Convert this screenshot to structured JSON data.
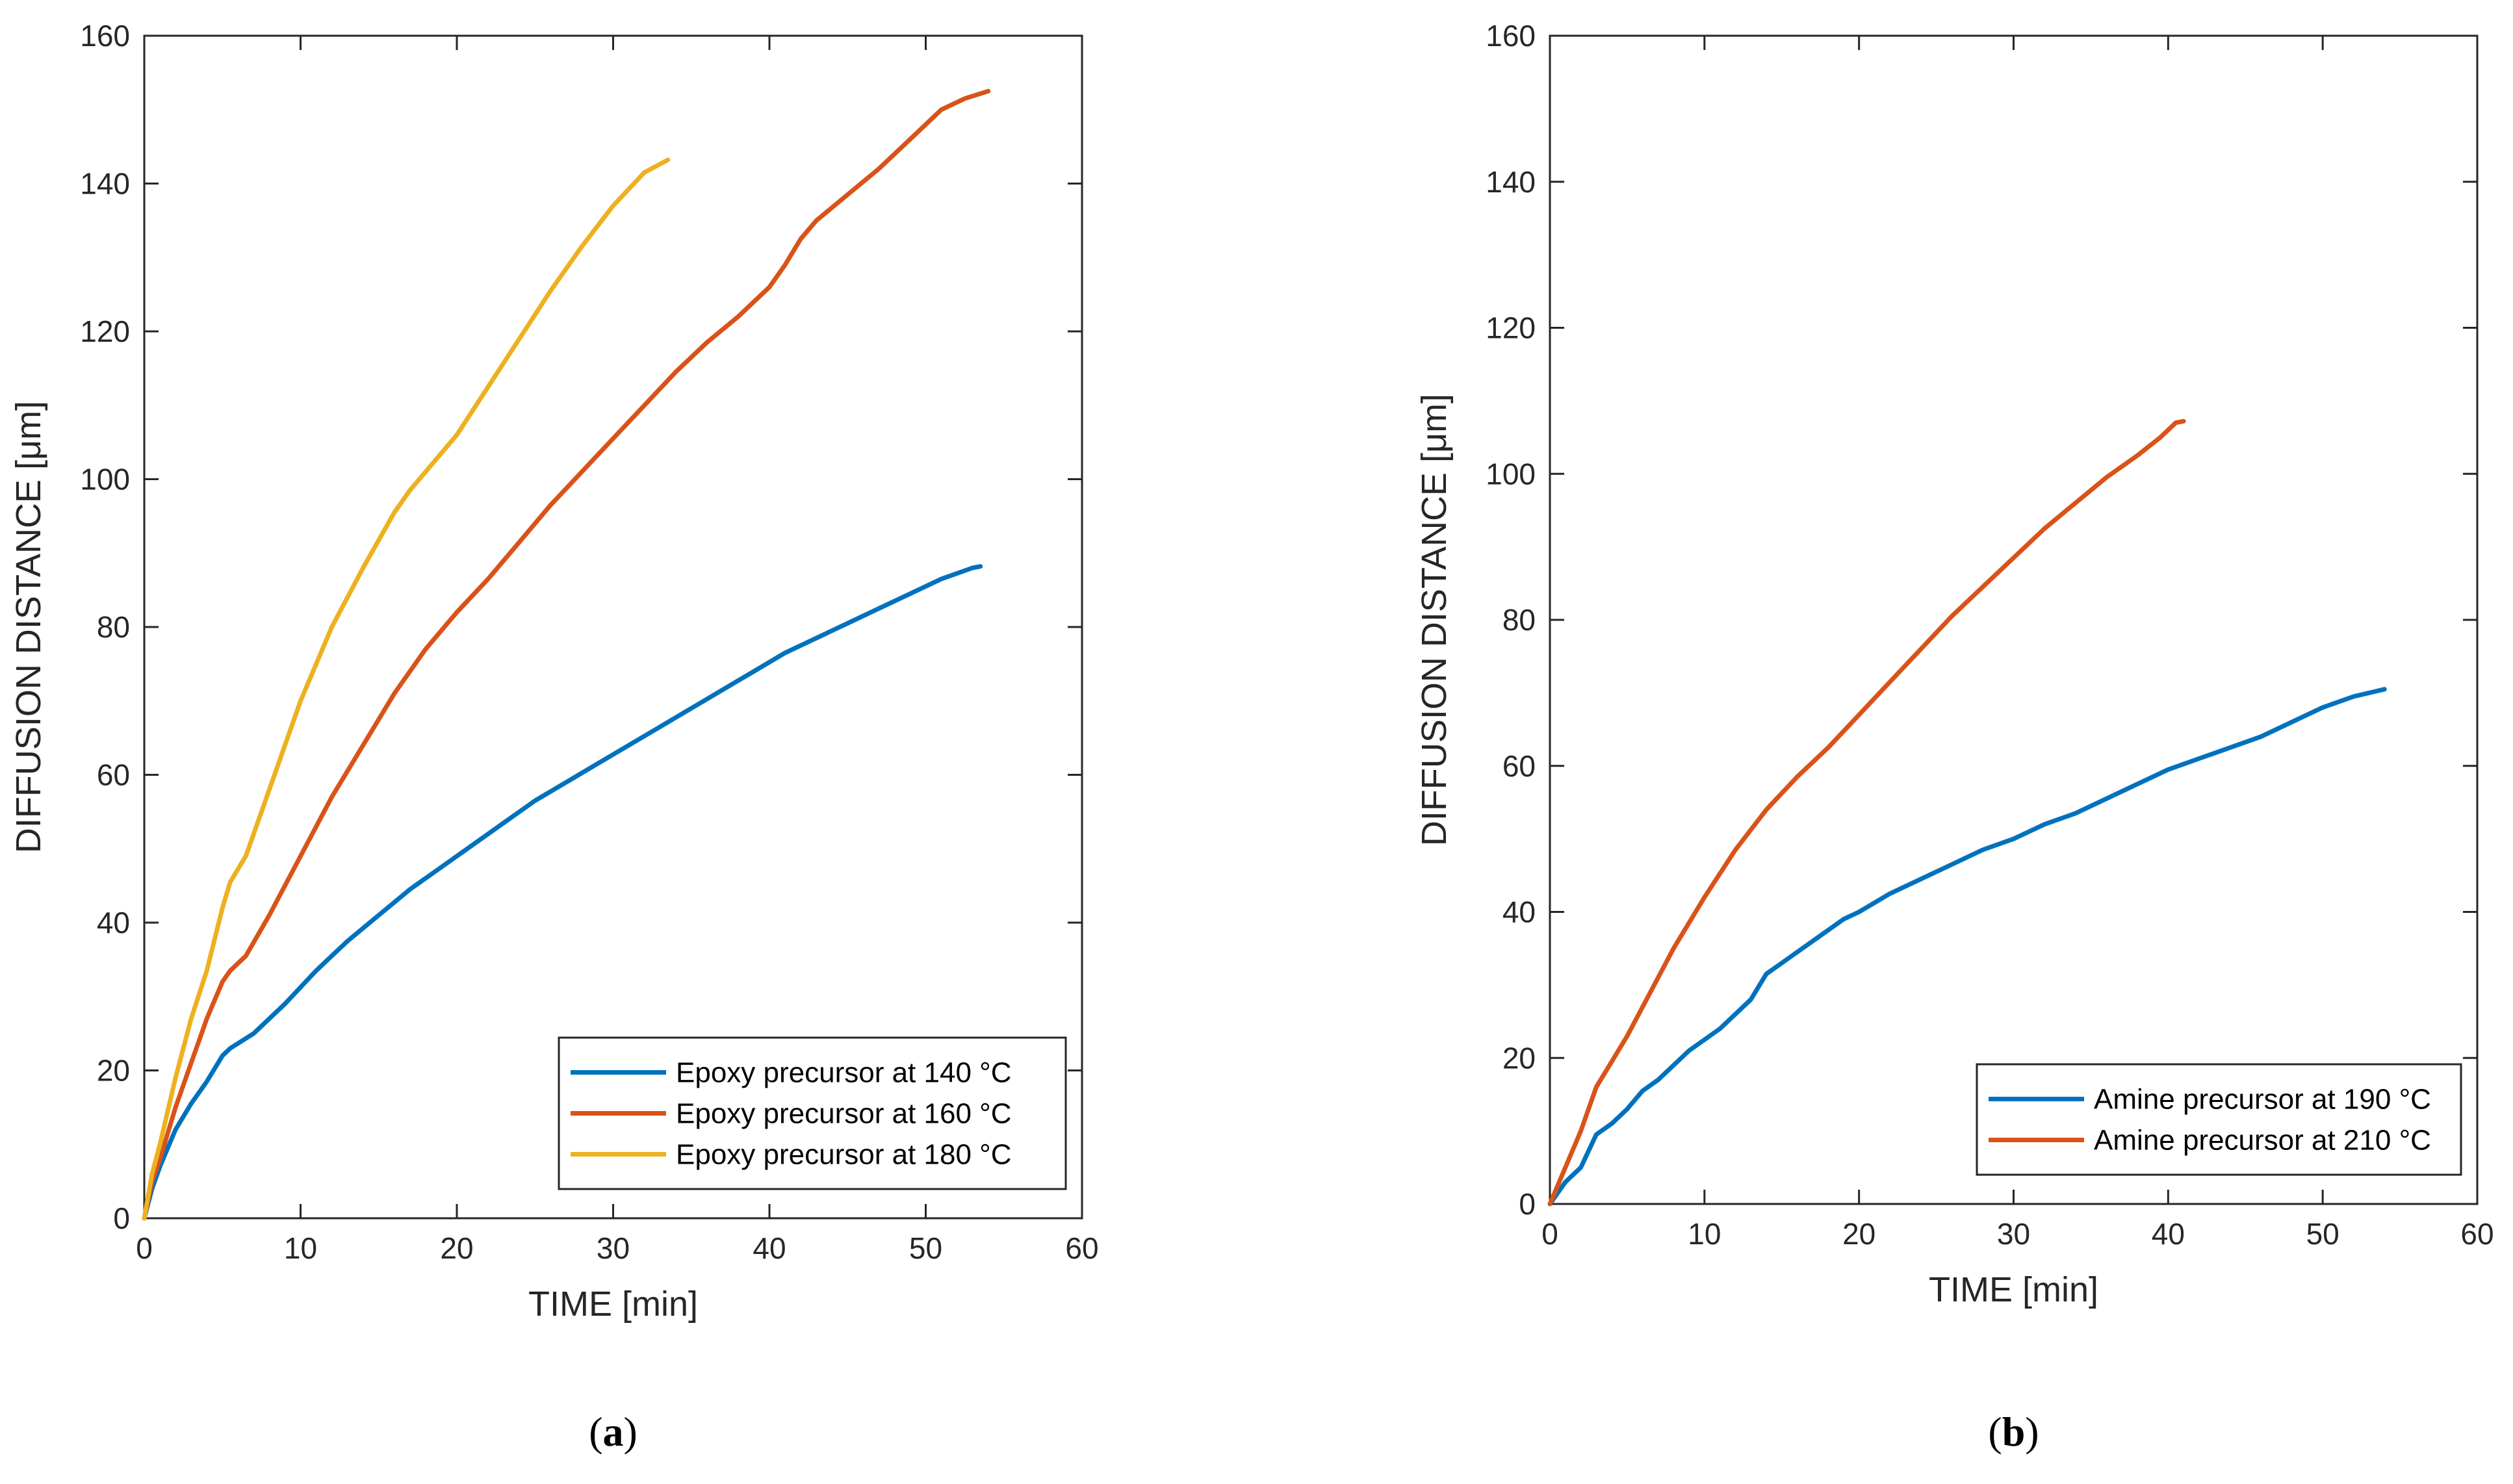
{
  "chart_data": [
    {
      "type": "line",
      "panel_label_prefix": "(",
      "panel_letter": "a",
      "panel_label_suffix": ")",
      "xlabel": "TIME [min]",
      "ylabel": "DIFFUSION DISTANCE [μm]",
      "xlim": [
        0,
        60
      ],
      "ylim": [
        0,
        160
      ],
      "xticks": [
        "0",
        "10",
        "20",
        "30",
        "40",
        "50",
        "60"
      ],
      "yticks": [
        "0",
        "20",
        "40",
        "60",
        "80",
        "100",
        "120",
        "140",
        "160"
      ],
      "legend_position": "bottom-right",
      "series": [
        {
          "name": "Epoxy precursor at 140 °C",
          "color": "#0072BD",
          "x": [
            0,
            0.5,
            1,
            2,
            3,
            4,
            5,
            5.5,
            7,
            9,
            11,
            13,
            15,
            17,
            19,
            21,
            23,
            25,
            27,
            29,
            31,
            33,
            35,
            37,
            39,
            41,
            43,
            45,
            47,
            49,
            51,
            53,
            53.5
          ],
          "y": [
            0,
            4,
            7,
            12,
            15.5,
            18.5,
            22,
            23,
            25,
            29,
            33.5,
            37.5,
            41,
            44.5,
            47.5,
            50.5,
            53.5,
            56.5,
            59,
            61.5,
            64,
            66.5,
            69,
            71.5,
            74,
            76.5,
            78.5,
            80.5,
            82.5,
            84.5,
            86.5,
            88,
            88.2
          ]
        },
        {
          "name": "Epoxy precursor at 160 °C",
          "color": "#D95319",
          "x": [
            0,
            0.5,
            1,
            2,
            3,
            4,
            5,
            5.5,
            6.5,
            8,
            10,
            12,
            14,
            16,
            18,
            20,
            22,
            24,
            26,
            28,
            30,
            32,
            34,
            36,
            38,
            40,
            41,
            42,
            43,
            45,
            47,
            49,
            51,
            52.5,
            54
          ],
          "y": [
            0,
            5,
            8,
            15,
            21,
            27,
            32,
            33.5,
            35.5,
            41,
            49,
            57,
            64,
            71,
            77,
            82,
            86.5,
            91.5,
            96.5,
            101,
            105.5,
            110,
            114.5,
            118.5,
            122,
            126,
            129,
            132.5,
            135,
            138.5,
            142,
            146,
            150,
            151.5,
            152.5
          ]
        },
        {
          "name": "Epoxy precursor at 180 °C",
          "color": "#EDB120",
          "x": [
            0,
            0.5,
            1,
            2,
            3,
            4,
            5,
            5.5,
            6.5,
            8,
            10,
            12,
            14,
            16,
            17,
            18,
            20,
            22,
            24,
            26,
            28,
            30,
            32,
            33.5
          ],
          "y": [
            0,
            6,
            10,
            19,
            27,
            33.5,
            42,
            45.5,
            49,
            58,
            70,
            80,
            88,
            95.5,
            98.5,
            101,
            106,
            112.5,
            119,
            125.5,
            131.5,
            137,
            141.5,
            143.2
          ]
        }
      ]
    },
    {
      "type": "line",
      "panel_label_prefix": "(",
      "panel_letter": "b",
      "panel_label_suffix": ")",
      "xlabel": "TIME [min]",
      "ylabel": "DIFFUSION DISTANCE [μm]",
      "xlim": [
        0,
        60
      ],
      "ylim": [
        0,
        160
      ],
      "xticks": [
        "0",
        "10",
        "20",
        "30",
        "40",
        "50",
        "60"
      ],
      "yticks": [
        "0",
        "20",
        "40",
        "60",
        "80",
        "100",
        "120",
        "140",
        "160"
      ],
      "legend_position": "bottom-right",
      "series": [
        {
          "name": "Amine precursor at 190 °C",
          "color": "#0072BD",
          "x": [
            0,
            1,
            2,
            3,
            4,
            5,
            6,
            7,
            8,
            9,
            10,
            11,
            12,
            13,
            14,
            15,
            16,
            17,
            18,
            19,
            20,
            22,
            24,
            26,
            28,
            30,
            32,
            34,
            36,
            38,
            40,
            42,
            44,
            46,
            48,
            50,
            52,
            54
          ],
          "y": [
            0,
            3,
            5,
            9.5,
            11,
            13,
            15.5,
            17,
            19,
            21,
            22.5,
            24,
            26,
            28,
            31.5,
            33,
            34.5,
            36,
            37.5,
            39,
            40,
            42.5,
            44.5,
            46.5,
            48.5,
            50,
            52,
            53.5,
            55.5,
            57.5,
            59.5,
            61,
            62.5,
            64,
            66,
            68,
            69.5,
            70.5
          ]
        },
        {
          "name": "Amine precursor at 210 °C",
          "color": "#D95319",
          "x": [
            0,
            1,
            2,
            3,
            4,
            5,
            6,
            7,
            8,
            10,
            12,
            14,
            16,
            18,
            20,
            22,
            24,
            26,
            28,
            30,
            32,
            34,
            36,
            38,
            39.5,
            40.5,
            41
          ],
          "y": [
            0,
            5,
            10,
            16,
            19.5,
            23,
            27,
            31,
            35,
            42,
            48.5,
            54,
            58.5,
            62.5,
            67,
            71.5,
            76,
            80.5,
            84.5,
            88.5,
            92.5,
            96,
            99.5,
            102.5,
            105,
            107,
            107.2
          ]
        }
      ]
    }
  ]
}
